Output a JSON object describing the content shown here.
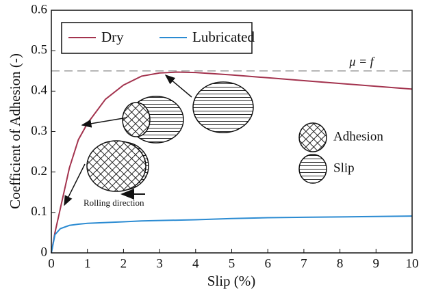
{
  "chart_data": {
    "type": "line",
    "x_label": "Slip (%)",
    "y_label": "Coefficient of Adhesion (-)",
    "xlim": [
      0,
      10
    ],
    "xticks": [
      0,
      1,
      2,
      3,
      4,
      5,
      6,
      7,
      8,
      9,
      10
    ],
    "ylim": [
      0,
      0.6
    ],
    "yticks": [
      0,
      0.1,
      0.2,
      0.3,
      0.4,
      0.5,
      0.6
    ],
    "x": [
      0,
      0.1,
      0.25,
      0.5,
      0.75,
      1,
      1.5,
      2,
      2.5,
      3,
      3.5,
      4,
      5,
      6,
      7,
      8,
      9,
      10
    ],
    "series": [
      {
        "name": "Dry",
        "color": "#a3334e",
        "values": [
          0,
          0.05,
          0.11,
          0.21,
          0.28,
          0.32,
          0.38,
          0.415,
          0.437,
          0.445,
          0.447,
          0.446,
          0.44,
          0.433,
          0.426,
          0.419,
          0.412,
          0.405
        ]
      },
      {
        "name": "Lubricated",
        "color": "#2b8bd2",
        "values": [
          0,
          0.045,
          0.06,
          0.068,
          0.071,
          0.073,
          0.075,
          0.077,
          0.079,
          0.08,
          0.081,
          0.082,
          0.085,
          0.087,
          0.088,
          0.089,
          0.09,
          0.091
        ]
      }
    ],
    "reference_line": {
      "value": 0.45,
      "label": "μ = f"
    },
    "annotations": {
      "adhesion": "Adhesion",
      "slip": "Slip",
      "rolling": "Rolling direction"
    },
    "legend": "upper left"
  }
}
